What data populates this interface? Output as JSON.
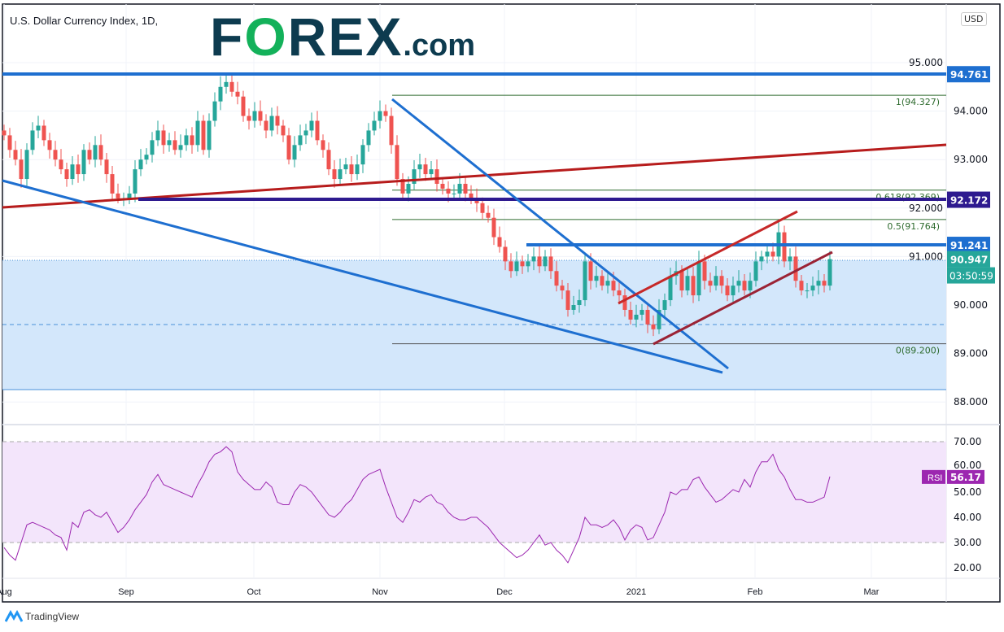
{
  "header": {
    "title": "U.S. Dollar Currency Index, 1D,",
    "logo": "FOREX.com",
    "currency": "USD"
  },
  "footer": {
    "brand": "TradingView"
  },
  "colors": {
    "up": "#26a69a",
    "down": "#ef5350",
    "blue_line": "#1e6fd0",
    "purple_line": "#2e1a8f",
    "red_line": "#b71c1c",
    "fib": "#2e6b2e",
    "rsi": "#9c27b0",
    "rsi_band": "#f3e5fb",
    "zone": "#d3e7fb"
  },
  "chart_data": [
    {
      "type": "candlestick",
      "title": "U.S. Dollar Currency Index, 1D,",
      "x_ticks": [
        "Aug",
        "Sep",
        "Oct",
        "Nov",
        "Dec",
        "2021",
        "Feb",
        "Mar"
      ],
      "y_ticks": [
        "95.000",
        "94.000",
        "93.000",
        "92.000",
        "91.000",
        "90.000",
        "89.000",
        "88.000"
      ],
      "ylim": [
        88.0,
        95.3
      ],
      "closes": [
        93.5,
        93.2,
        93.0,
        92.6,
        93.2,
        93.6,
        93.7,
        93.4,
        93.2,
        93.0,
        92.8,
        92.6,
        92.9,
        92.7,
        93.2,
        93.0,
        93.3,
        93.0,
        92.7,
        92.3,
        92.2,
        92.2,
        92.3,
        92.8,
        93.0,
        93.1,
        93.4,
        93.6,
        93.3,
        93.4,
        93.2,
        93.3,
        93.5,
        93.3,
        93.8,
        93.2,
        93.8,
        94.2,
        94.5,
        94.6,
        94.4,
        94.3,
        93.9,
        93.8,
        94.0,
        93.8,
        93.6,
        93.9,
        93.7,
        93.5,
        93.0,
        93.3,
        93.5,
        93.6,
        93.8,
        93.4,
        93.2,
        92.8,
        92.6,
        92.8,
        92.9,
        92.7,
        92.9,
        93.3,
        93.6,
        93.8,
        94.0,
        93.9,
        93.3,
        92.6,
        92.3,
        92.5,
        92.8,
        92.9,
        92.7,
        92.8,
        92.5,
        92.4,
        92.3,
        92.3,
        92.5,
        92.3,
        92.2,
        92.1,
        91.9,
        91.8,
        91.4,
        91.2,
        90.9,
        90.7,
        90.9,
        90.8,
        90.9,
        91.0,
        90.8,
        91.0,
        90.7,
        90.4,
        90.3,
        89.9,
        90.0,
        90.1,
        90.9,
        90.5,
        90.6,
        90.4,
        90.5,
        90.3,
        90.2,
        89.9,
        89.7,
        89.8,
        89.9,
        89.6,
        89.5,
        89.9,
        90.1,
        90.6,
        90.7,
        90.3,
        90.6,
        90.2,
        90.9,
        90.5,
        90.4,
        90.6,
        90.4,
        90.2,
        90.4,
        90.5,
        90.3,
        90.5,
        90.9,
        91.0,
        91.1,
        91.0,
        91.5,
        90.9,
        91.0,
        90.5,
        90.3,
        90.3,
        90.4,
        90.5,
        90.4,
        90.947
      ],
      "levels": [
        {
          "label": "94.761",
          "value": 94.761,
          "color": "#1e6fd0"
        },
        {
          "label": "92.172",
          "value": 92.172,
          "color": "#2e1a8f"
        },
        {
          "label": "91.241",
          "value": 91.241,
          "color": "#1e6fd0"
        },
        {
          "label": "90.947",
          "value": 90.947,
          "color": "#26a69a"
        }
      ],
      "countdown": "03:50:59",
      "fibonacci": [
        {
          "label": "1(94.327)",
          "value": 94.327
        },
        {
          "label": "0.618(92.369)",
          "value": 92.369
        },
        {
          "label": "0.5(91.764)",
          "value": 91.764
        },
        {
          "label": "0(89.200)",
          "value": 89.2
        }
      ]
    },
    {
      "type": "line",
      "series": [
        {
          "name": "RSI",
          "last": "56.17",
          "values": [
            28,
            25,
            23,
            30,
            37,
            38,
            37,
            36,
            35,
            33,
            32,
            27,
            38,
            36,
            42,
            43,
            41,
            40,
            42,
            38,
            34,
            36,
            39,
            43,
            46,
            49,
            54,
            57,
            53,
            52,
            51,
            50,
            49,
            48,
            53,
            57,
            62,
            65,
            66,
            68,
            66,
            58,
            55,
            53,
            51,
            51,
            54,
            52,
            46,
            45,
            45,
            50,
            53,
            52,
            50,
            47,
            44,
            41,
            40,
            42,
            45,
            47,
            51,
            55,
            57,
            58,
            59,
            52,
            46,
            40,
            38,
            42,
            47,
            46,
            48,
            49,
            46,
            45,
            42,
            40,
            39,
            39,
            40,
            40,
            38,
            36,
            33,
            30,
            28,
            26,
            24,
            25,
            27,
            30,
            33,
            29,
            30,
            27,
            25,
            22,
            27,
            32,
            40,
            37,
            37,
            36,
            37,
            39,
            36,
            31,
            35,
            37,
            36,
            31,
            32,
            37,
            42,
            50,
            49,
            51,
            51,
            55,
            56,
            52,
            49,
            46,
            47,
            49,
            51,
            50,
            55,
            52,
            58,
            62,
            62,
            65,
            59,
            56,
            51,
            47,
            47,
            46,
            46,
            47,
            48,
            56.17
          ]
        }
      ],
      "y_ticks": [
        "70.00",
        "60.00",
        "50.00",
        "40.00",
        "30.00",
        "20.00"
      ],
      "ylim": [
        15,
        75
      ],
      "bands": [
        30,
        70
      ]
    }
  ]
}
